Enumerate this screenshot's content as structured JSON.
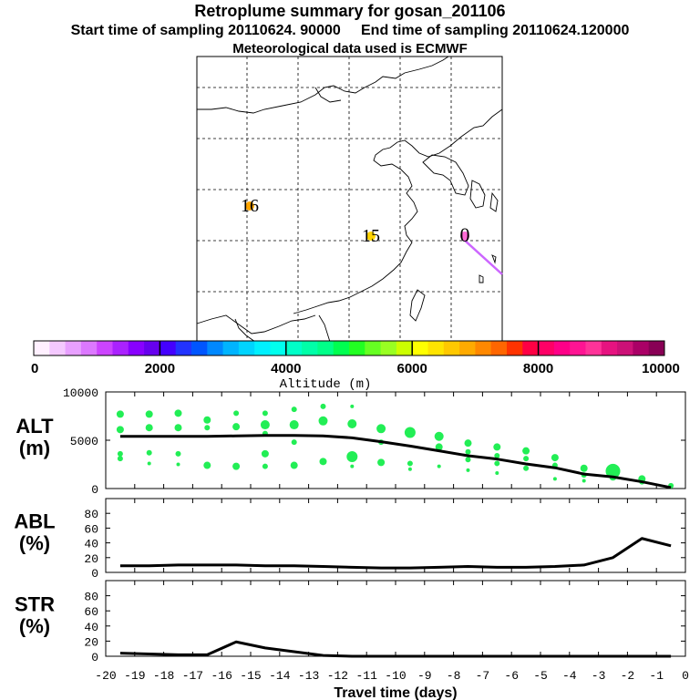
{
  "header": {
    "title": "Retroplume summary for gosan_201106",
    "subtitle": "Start time of sampling 20110624. 90000     End time of sampling 20110624.120000",
    "subtitle2": "Meteorological data used is ECMWF"
  },
  "map": {
    "labels": [
      {
        "text": "16",
        "day": -16,
        "color": "#ffa500"
      },
      {
        "text": "15",
        "day": -15,
        "color": "#ffd400"
      },
      {
        "text": "0",
        "day": 0,
        "color": "#ff6ad5"
      }
    ],
    "trajectory_color": "#cc66ff"
  },
  "colorbar": {
    "colors": [
      "#fff0ff",
      "#f4c8ff",
      "#e8a0ff",
      "#dc78ff",
      "#cc44ff",
      "#aa22ff",
      "#8800ff",
      "#6600ee",
      "#4400ff",
      "#2233ff",
      "#0055ff",
      "#0088ff",
      "#00b4ff",
      "#00d4ff",
      "#00f0ff",
      "#00ffee",
      "#00ffc8",
      "#00ffa8",
      "#00ff88",
      "#00ff50",
      "#22ff22",
      "#66ff22",
      "#99ff22",
      "#ccff00",
      "#ffff00",
      "#ffe400",
      "#ffc800",
      "#ffaa00",
      "#ff8800",
      "#ff6600",
      "#ff3300",
      "#ff0044",
      "#ff0066",
      "#ff0088",
      "#ff1493",
      "#ff3399",
      "#e61380",
      "#cc1177",
      "#aa0066",
      "#880055"
    ],
    "ticks": [
      "0",
      "2000",
      "4000",
      "6000",
      "8000",
      "10000"
    ],
    "label": "Altitude (m)"
  },
  "chart_data": [
    {
      "type": "line",
      "title": "ALT",
      "ylabel": "ALT\n(m)",
      "ylim": [
        0,
        10000
      ],
      "yticks": [
        "10000",
        "5000",
        "0"
      ],
      "series": [
        {
          "name": "median altitude",
          "x": [
            -19.5,
            -18.5,
            -17.5,
            -16.5,
            -15.5,
            -14.5,
            -13.5,
            -12.5,
            -11.5,
            -10.5,
            -9.5,
            -8.5,
            -7.5,
            -6.5,
            -5.5,
            -4.5,
            -3.5,
            -2.5,
            -1.5,
            -0.5
          ],
          "values": [
            5400,
            5400,
            5400,
            5400,
            5450,
            5500,
            5500,
            5450,
            5250,
            4850,
            4400,
            3900,
            3400,
            3050,
            2550,
            2150,
            1500,
            1200,
            700,
            100
          ]
        }
      ],
      "scatter": [
        {
          "x": -19.5,
          "y": 7700,
          "r": 4
        },
        {
          "x": -19.5,
          "y": 6100,
          "r": 4
        },
        {
          "x": -19.5,
          "y": 3600,
          "r": 3
        },
        {
          "x": -19.5,
          "y": 3100,
          "r": 3
        },
        {
          "x": -18.5,
          "y": 7700,
          "r": 4
        },
        {
          "x": -18.5,
          "y": 6300,
          "r": 4
        },
        {
          "x": -18.5,
          "y": 3700,
          "r": 3
        },
        {
          "x": -18.5,
          "y": 2600,
          "r": 2
        },
        {
          "x": -17.5,
          "y": 7800,
          "r": 4
        },
        {
          "x": -17.5,
          "y": 6300,
          "r": 4
        },
        {
          "x": -17.5,
          "y": 3600,
          "r": 3
        },
        {
          "x": -17.5,
          "y": 2500,
          "r": 2
        },
        {
          "x": -16.5,
          "y": 7100,
          "r": 4
        },
        {
          "x": -16.5,
          "y": 6300,
          "r": 3
        },
        {
          "x": -16.5,
          "y": 2400,
          "r": 4
        },
        {
          "x": -15.5,
          "y": 7800,
          "r": 3
        },
        {
          "x": -15.5,
          "y": 6400,
          "r": 4
        },
        {
          "x": -15.5,
          "y": 2300,
          "r": 4
        },
        {
          "x": -14.5,
          "y": 7800,
          "r": 3
        },
        {
          "x": -14.5,
          "y": 6600,
          "r": 5
        },
        {
          "x": -14.5,
          "y": 5700,
          "r": 3
        },
        {
          "x": -14.5,
          "y": 3600,
          "r": 4
        },
        {
          "x": -14.5,
          "y": 2300,
          "r": 3
        },
        {
          "x": -13.5,
          "y": 8200,
          "r": 3
        },
        {
          "x": -13.5,
          "y": 6600,
          "r": 5
        },
        {
          "x": -13.5,
          "y": 4800,
          "r": 3
        },
        {
          "x": -13.5,
          "y": 2400,
          "r": 4
        },
        {
          "x": -12.5,
          "y": 8500,
          "r": 3
        },
        {
          "x": -12.5,
          "y": 7000,
          "r": 5
        },
        {
          "x": -12.5,
          "y": 2800,
          "r": 4
        },
        {
          "x": -11.5,
          "y": 8500,
          "r": 2
        },
        {
          "x": -11.5,
          "y": 6700,
          "r": 5
        },
        {
          "x": -11.5,
          "y": 3300,
          "r": 6
        },
        {
          "x": -11.5,
          "y": 2300,
          "r": 2
        },
        {
          "x": -10.5,
          "y": 6200,
          "r": 5
        },
        {
          "x": -10.5,
          "y": 4800,
          "r": 3
        },
        {
          "x": -10.5,
          "y": 2700,
          "r": 4
        },
        {
          "x": -9.5,
          "y": 5800,
          "r": 6
        },
        {
          "x": -9.5,
          "y": 2600,
          "r": 3
        },
        {
          "x": -9.5,
          "y": 2000,
          "r": 2
        },
        {
          "x": -8.5,
          "y": 5400,
          "r": 5
        },
        {
          "x": -8.5,
          "y": 4300,
          "r": 4
        },
        {
          "x": -8.5,
          "y": 2300,
          "r": 2
        },
        {
          "x": -7.5,
          "y": 4700,
          "r": 4
        },
        {
          "x": -7.5,
          "y": 3800,
          "r": 3
        },
        {
          "x": -7.5,
          "y": 3000,
          "r": 3
        },
        {
          "x": -7.5,
          "y": 1900,
          "r": 2
        },
        {
          "x": -6.5,
          "y": 4300,
          "r": 4
        },
        {
          "x": -6.5,
          "y": 3400,
          "r": 3
        },
        {
          "x": -6.5,
          "y": 2600,
          "r": 3
        },
        {
          "x": -6.5,
          "y": 1600,
          "r": 2
        },
        {
          "x": -5.5,
          "y": 3900,
          "r": 4
        },
        {
          "x": -5.5,
          "y": 3100,
          "r": 3
        },
        {
          "x": -5.5,
          "y": 2100,
          "r": 3
        },
        {
          "x": -4.5,
          "y": 3200,
          "r": 4
        },
        {
          "x": -4.5,
          "y": 2400,
          "r": 3
        },
        {
          "x": -4.5,
          "y": 1000,
          "r": 2
        },
        {
          "x": -3.5,
          "y": 2100,
          "r": 4
        },
        {
          "x": -3.5,
          "y": 1400,
          "r": 3
        },
        {
          "x": -3.5,
          "y": 800,
          "r": 2
        },
        {
          "x": -2.5,
          "y": 1800,
          "r": 8
        },
        {
          "x": -2.5,
          "y": 1200,
          "r": 4
        },
        {
          "x": -1.5,
          "y": 1000,
          "r": 4
        },
        {
          "x": -1.5,
          "y": 700,
          "r": 3
        },
        {
          "x": -0.5,
          "y": 300,
          "r": 3
        }
      ],
      "point_color": "#22ee55"
    },
    {
      "type": "line",
      "title": "ABL",
      "ylabel": "ABL\n(%)",
      "ylim": [
        0,
        100
      ],
      "yticks": [
        "80",
        "60",
        "40",
        "20",
        "0"
      ],
      "series": [
        {
          "name": "fraction in ABL",
          "x": [
            -19.5,
            -18.5,
            -17.5,
            -16.5,
            -15.5,
            -14.5,
            -13.5,
            -12.5,
            -11.5,
            -10.5,
            -9.5,
            -8.5,
            -7.5,
            -6.5,
            -5.5,
            -4.5,
            -3.5,
            -2.5,
            -1.5,
            -0.5
          ],
          "values": [
            9,
            9,
            10,
            10,
            10,
            9,
            9,
            8,
            7,
            6,
            6,
            7,
            8,
            7,
            7,
            8,
            10,
            20,
            46,
            36
          ]
        }
      ]
    },
    {
      "type": "line",
      "title": "STR",
      "ylabel": "STR\n(%)",
      "ylim": [
        0,
        100
      ],
      "yticks": [
        "80",
        "60",
        "40",
        "20",
        "0"
      ],
      "xlabel": "Travel time (days)",
      "xticks": [
        "-20",
        "-19",
        "-18",
        "-17",
        "-16",
        "-15",
        "-14",
        "-13",
        "-12",
        "-11",
        "-10",
        "-9",
        "-8",
        "-7",
        "-6",
        "-5",
        "-4",
        "-3",
        "-2",
        "-1",
        "0"
      ],
      "series": [
        {
          "name": "fraction in stratosphere",
          "x": [
            -19.5,
            -18.5,
            -17.5,
            -16.5,
            -15.5,
            -14.5,
            -13.5,
            -12.5,
            -11.5,
            -10.5,
            -9.5,
            -8.5,
            -7.5,
            -6.5,
            -5.5,
            -4.5,
            -3.5,
            -2.5,
            -1.5,
            -0.5
          ],
          "values": [
            4,
            3,
            2,
            2,
            19,
            11,
            6,
            1,
            0,
            0,
            0,
            0,
            0,
            0,
            0,
            0,
            0,
            0,
            0,
            0
          ]
        }
      ]
    }
  ]
}
